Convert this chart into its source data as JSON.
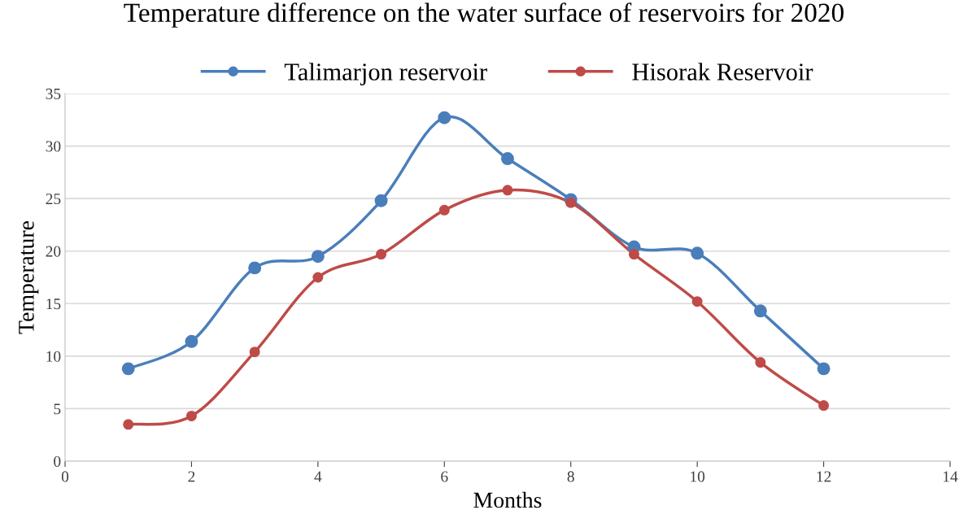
{
  "chart_data": {
    "type": "line",
    "title": "Temperature difference on the water surface of reservoirs for 2020",
    "xlabel": "Months",
    "ylabel": "Temperature",
    "x": [
      1,
      2,
      3,
      4,
      5,
      6,
      7,
      8,
      9,
      10,
      11,
      12
    ],
    "series": [
      {
        "name": "Talimarjon reservoir",
        "color": "#4a7ebb",
        "values": [
          8.8,
          11.4,
          18.4,
          19.5,
          24.8,
          32.7,
          28.8,
          24.9,
          20.4,
          19.8,
          14.3,
          8.8
        ]
      },
      {
        "name": "Hisorak Reservoir",
        "color": "#be4b48",
        "values": [
          3.5,
          4.3,
          10.4,
          17.5,
          19.7,
          23.9,
          25.8,
          24.6,
          19.7,
          15.2,
          9.4,
          5.3
        ]
      }
    ],
    "xlim": [
      0,
      14
    ],
    "xticks": [
      0,
      2,
      4,
      6,
      8,
      10,
      12,
      14
    ],
    "ylim": [
      0,
      35
    ],
    "yticks": [
      0,
      5,
      10,
      15,
      20,
      25,
      30,
      35
    ],
    "grid": "y",
    "legend": "top",
    "marker": "circle",
    "line_style": "solid"
  }
}
